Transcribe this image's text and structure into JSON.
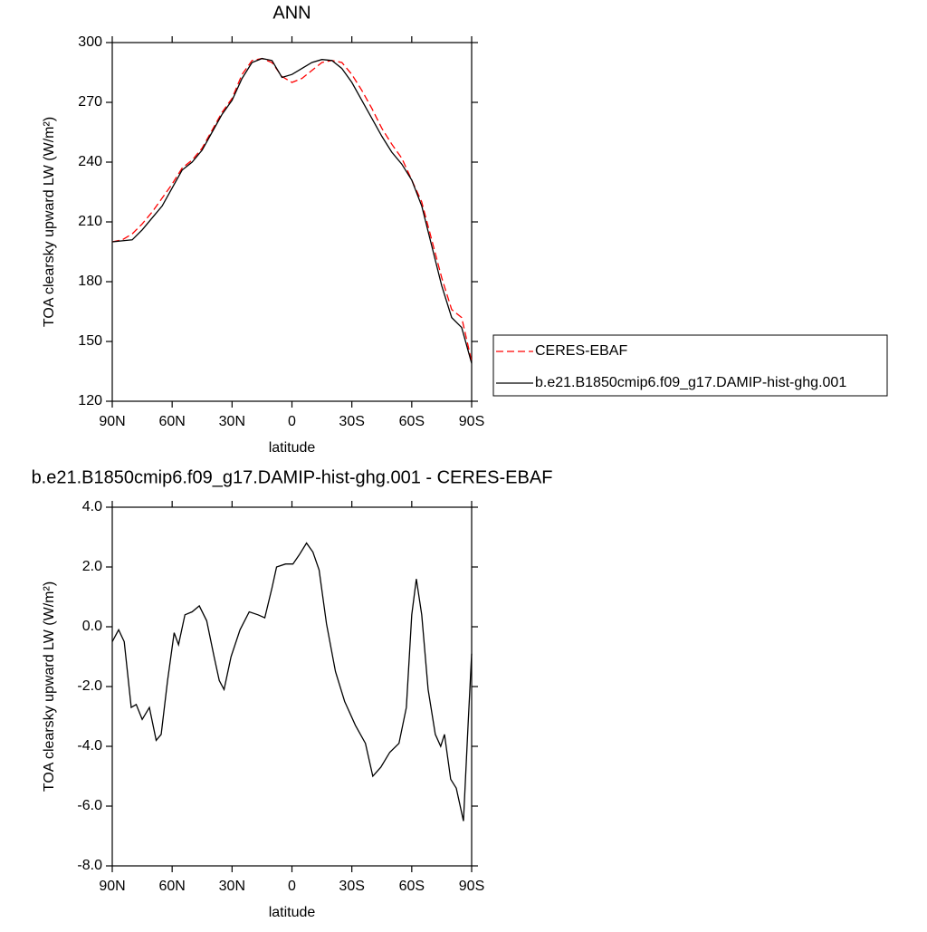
{
  "chart_data": [
    {
      "type": "line",
      "title": "ANN",
      "xlabel": "latitude",
      "ylabel": "TOA clearsky upward LW (W/m²)",
      "x": [
        90,
        85,
        80,
        75,
        70,
        65,
        60,
        55,
        50,
        45,
        40,
        35,
        30,
        25,
        20,
        15,
        10,
        5,
        0,
        -5,
        -10,
        -15,
        -20,
        -25,
        -30,
        -35,
        -40,
        -45,
        -50,
        -55,
        -60,
        -65,
        -70,
        -75,
        -80,
        -85,
        -90
      ],
      "series": [
        {
          "name": "CERES-EBAF",
          "color": "#ff0000",
          "line_style": "dashed",
          "values": [
            200,
            201,
            204,
            209,
            215,
            222,
            229,
            237,
            241,
            247,
            256,
            265,
            272,
            284,
            291,
            292,
            290,
            283,
            280,
            282,
            286,
            290,
            291,
            290,
            284,
            276,
            267,
            257,
            249,
            242,
            231,
            220,
            201,
            182,
            166,
            162,
            140
          ]
        },
        {
          "name": "b.e21.B1850cmip6.f09_g17.DAMIP-hist-ghg.001",
          "color": "#000000",
          "line_style": "solid",
          "values": [
            200,
            200.5,
            201,
            206,
            212,
            218,
            227,
            236,
            240,
            246,
            255,
            264,
            271,
            282,
            290,
            292,
            291,
            282.5,
            284,
            287,
            290,
            291.5,
            291,
            287,
            280,
            271,
            262,
            253,
            245,
            239,
            231,
            218,
            198,
            178,
            162,
            157,
            139
          ]
        }
      ],
      "xlim": [
        90,
        -90
      ],
      "xticks": [
        {
          "value": 90,
          "label": "90N"
        },
        {
          "value": 60,
          "label": "60N"
        },
        {
          "value": 30,
          "label": "30N"
        },
        0,
        {
          "value": -30,
          "label": "30S"
        },
        {
          "value": -60,
          "label": "60S"
        },
        {
          "value": -90,
          "label": "90S"
        }
      ],
      "ylim": [
        120,
        300
      ],
      "yticks": [
        120,
        150,
        180,
        210,
        240,
        270,
        300
      ],
      "legend": "right"
    },
    {
      "type": "line",
      "title": "b.e21.B1850cmip6.f09_g17.DAMIP-hist-ghg.001 - CERES-EBAF",
      "xlabel": "latitude",
      "ylabel": "TOA clearsky upward LW (W/m²)",
      "x": [
        90,
        86.8,
        84,
        80.5,
        78,
        75,
        71.4,
        68,
        65.5,
        62.3,
        59,
        56.8,
        53.6,
        50,
        46.4,
        42.7,
        39,
        36.4,
        34,
        30.5,
        26,
        21.4,
        17,
        13.6,
        10,
        7.7,
        3.2,
        -0.5,
        -3.6,
        -7.3,
        -10.5,
        -13.6,
        -17.3,
        -21.8,
        -26.4,
        -31.8,
        -36.8,
        -40.5,
        -44.5,
        -49,
        -53.6,
        -57.3,
        -60,
        -62.3,
        -65,
        -68.2,
        -71.8,
        -74.5,
        -76.4,
        -79.5,
        -82.3,
        -85.9,
        -88.2,
        -90
      ],
      "series": [
        {
          "color": "#000000",
          "line_style": "solid",
          "values": [
            -0.5,
            -0.1,
            -0.5,
            -2.7,
            -2.6,
            -3.1,
            -2.7,
            -3.8,
            -3.6,
            -1.8,
            -0.2,
            -0.6,
            0.4,
            0.5,
            0.7,
            0.2,
            -1.0,
            -1.8,
            -2.1,
            -1.0,
            -0.1,
            0.5,
            0.4,
            0.3,
            1.3,
            2.0,
            2.1,
            2.1,
            2.4,
            2.8,
            2.5,
            1.9,
            0.1,
            -1.5,
            -2.5,
            -3.3,
            -3.9,
            -5.0,
            -4.7,
            -4.2,
            -3.9,
            -2.7,
            0.4,
            1.6,
            0.4,
            -2.1,
            -3.6,
            -4.0,
            -3.6,
            -5.1,
            -5.4,
            -6.5,
            -3.3,
            -0.9
          ]
        }
      ],
      "xlim": [
        90,
        -90
      ],
      "xticks": [
        {
          "value": 90,
          "label": "90N"
        },
        {
          "value": 60,
          "label": "60N"
        },
        {
          "value": 30,
          "label": "30N"
        },
        0,
        {
          "value": -30,
          "label": "30S"
        },
        {
          "value": -60,
          "label": "60S"
        },
        {
          "value": -90,
          "label": "90S"
        }
      ],
      "ylim": [
        -8,
        4
      ],
      "yticks": [
        {
          "value": -8,
          "label": "-8.0"
        },
        {
          "value": -6,
          "label": "-6.0"
        },
        {
          "value": -4,
          "label": "-4.0"
        },
        {
          "value": -2,
          "label": "-2.0"
        },
        {
          "value": 0,
          "label": "0.0"
        },
        {
          "value": 2,
          "label": "2.0"
        },
        {
          "value": 4,
          "label": "4.0"
        }
      ]
    }
  ]
}
